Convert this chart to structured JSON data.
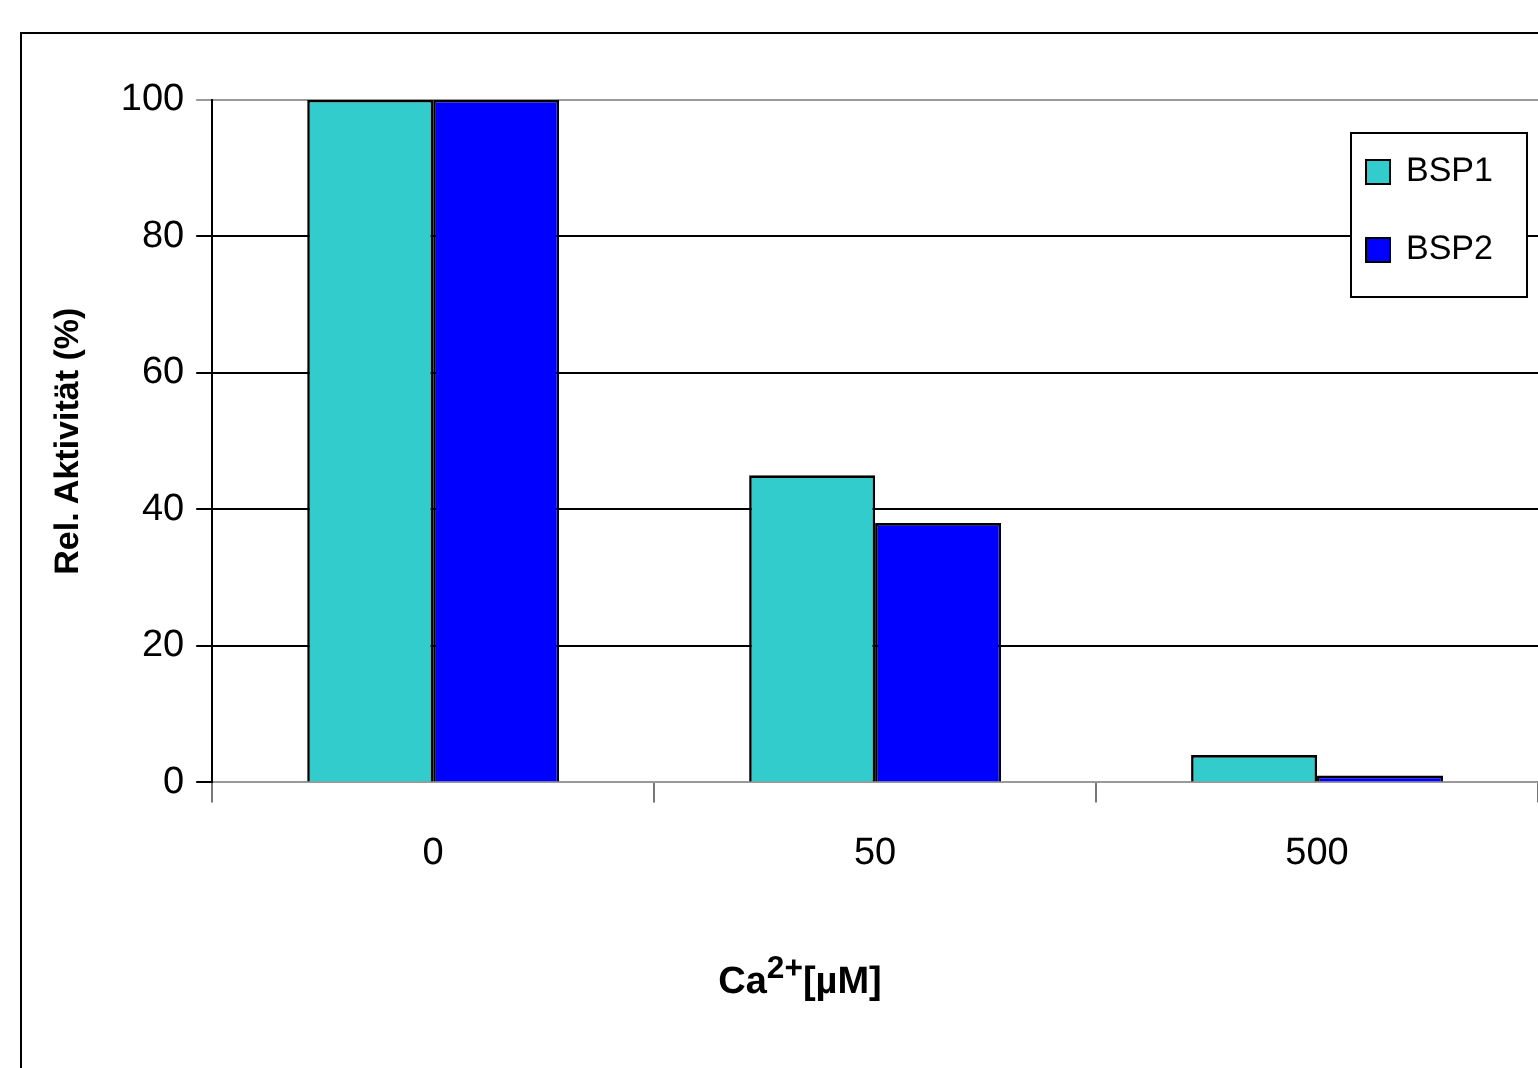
{
  "chart_data": {
    "type": "bar",
    "xlabel": "Ca$^{2+}$[µM]",
    "ylabel": "Rel. Aktivität (%)",
    "categories": [
      "0",
      "50",
      "500"
    ],
    "series": [
      {
        "name": "BSP1",
        "color": "#33cccc",
        "values": [
          100,
          45,
          4
        ]
      },
      {
        "name": "BSP2",
        "color": "#0000ff",
        "values": [
          100,
          38,
          1
        ]
      }
    ],
    "ylim": [
      0,
      100
    ],
    "yticks": [
      0,
      20,
      40,
      60,
      80,
      100
    ],
    "grid": "y",
    "legend": "top right"
  }
}
